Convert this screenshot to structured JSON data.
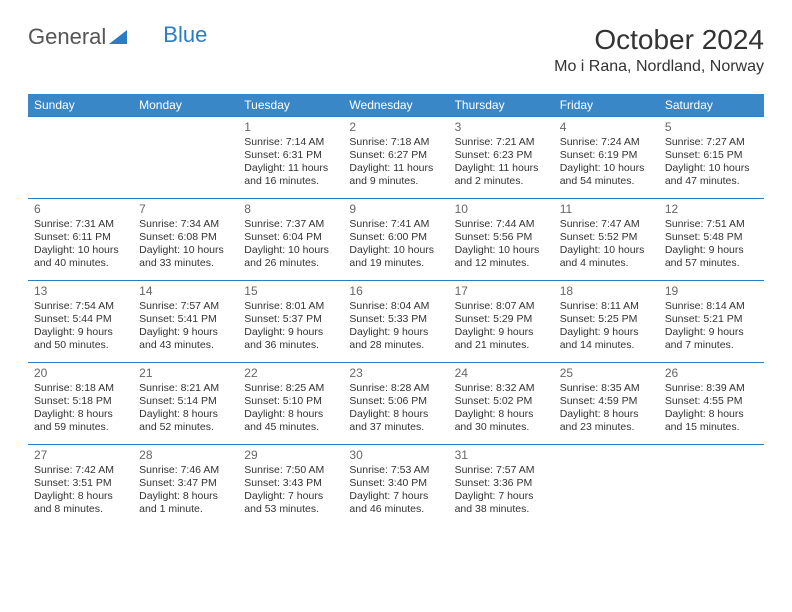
{
  "logo": {
    "text1": "General",
    "text2": "Blue"
  },
  "title": "October 2024",
  "location": "Mo i Rana, Nordland, Norway",
  "colors": {
    "header_bg": "#3a87c8",
    "header_text": "#ffffff",
    "cell_border": "#2a7cc4",
    "text": "#333333",
    "daynum": "#666666",
    "logo_gray": "#555555",
    "logo_blue": "#2a7cc4",
    "background": "#ffffff"
  },
  "fonts": {
    "title_size": 28,
    "location_size": 16,
    "dayheader_size": 12,
    "daynum_size": 12,
    "cell_size": 10.5
  },
  "day_headers": [
    "Sunday",
    "Monday",
    "Tuesday",
    "Wednesday",
    "Thursday",
    "Friday",
    "Saturday"
  ],
  "weeks": [
    [
      null,
      null,
      {
        "n": "1",
        "sr": "Sunrise: 7:14 AM",
        "ss": "Sunset: 6:31 PM",
        "d1": "Daylight: 11 hours",
        "d2": "and 16 minutes."
      },
      {
        "n": "2",
        "sr": "Sunrise: 7:18 AM",
        "ss": "Sunset: 6:27 PM",
        "d1": "Daylight: 11 hours",
        "d2": "and 9 minutes."
      },
      {
        "n": "3",
        "sr": "Sunrise: 7:21 AM",
        "ss": "Sunset: 6:23 PM",
        "d1": "Daylight: 11 hours",
        "d2": "and 2 minutes."
      },
      {
        "n": "4",
        "sr": "Sunrise: 7:24 AM",
        "ss": "Sunset: 6:19 PM",
        "d1": "Daylight: 10 hours",
        "d2": "and 54 minutes."
      },
      {
        "n": "5",
        "sr": "Sunrise: 7:27 AM",
        "ss": "Sunset: 6:15 PM",
        "d1": "Daylight: 10 hours",
        "d2": "and 47 minutes."
      }
    ],
    [
      {
        "n": "6",
        "sr": "Sunrise: 7:31 AM",
        "ss": "Sunset: 6:11 PM",
        "d1": "Daylight: 10 hours",
        "d2": "and 40 minutes."
      },
      {
        "n": "7",
        "sr": "Sunrise: 7:34 AM",
        "ss": "Sunset: 6:08 PM",
        "d1": "Daylight: 10 hours",
        "d2": "and 33 minutes."
      },
      {
        "n": "8",
        "sr": "Sunrise: 7:37 AM",
        "ss": "Sunset: 6:04 PM",
        "d1": "Daylight: 10 hours",
        "d2": "and 26 minutes."
      },
      {
        "n": "9",
        "sr": "Sunrise: 7:41 AM",
        "ss": "Sunset: 6:00 PM",
        "d1": "Daylight: 10 hours",
        "d2": "and 19 minutes."
      },
      {
        "n": "10",
        "sr": "Sunrise: 7:44 AM",
        "ss": "Sunset: 5:56 PM",
        "d1": "Daylight: 10 hours",
        "d2": "and 12 minutes."
      },
      {
        "n": "11",
        "sr": "Sunrise: 7:47 AM",
        "ss": "Sunset: 5:52 PM",
        "d1": "Daylight: 10 hours",
        "d2": "and 4 minutes."
      },
      {
        "n": "12",
        "sr": "Sunrise: 7:51 AM",
        "ss": "Sunset: 5:48 PM",
        "d1": "Daylight: 9 hours",
        "d2": "and 57 minutes."
      }
    ],
    [
      {
        "n": "13",
        "sr": "Sunrise: 7:54 AM",
        "ss": "Sunset: 5:44 PM",
        "d1": "Daylight: 9 hours",
        "d2": "and 50 minutes."
      },
      {
        "n": "14",
        "sr": "Sunrise: 7:57 AM",
        "ss": "Sunset: 5:41 PM",
        "d1": "Daylight: 9 hours",
        "d2": "and 43 minutes."
      },
      {
        "n": "15",
        "sr": "Sunrise: 8:01 AM",
        "ss": "Sunset: 5:37 PM",
        "d1": "Daylight: 9 hours",
        "d2": "and 36 minutes."
      },
      {
        "n": "16",
        "sr": "Sunrise: 8:04 AM",
        "ss": "Sunset: 5:33 PM",
        "d1": "Daylight: 9 hours",
        "d2": "and 28 minutes."
      },
      {
        "n": "17",
        "sr": "Sunrise: 8:07 AM",
        "ss": "Sunset: 5:29 PM",
        "d1": "Daylight: 9 hours",
        "d2": "and 21 minutes."
      },
      {
        "n": "18",
        "sr": "Sunrise: 8:11 AM",
        "ss": "Sunset: 5:25 PM",
        "d1": "Daylight: 9 hours",
        "d2": "and 14 minutes."
      },
      {
        "n": "19",
        "sr": "Sunrise: 8:14 AM",
        "ss": "Sunset: 5:21 PM",
        "d1": "Daylight: 9 hours",
        "d2": "and 7 minutes."
      }
    ],
    [
      {
        "n": "20",
        "sr": "Sunrise: 8:18 AM",
        "ss": "Sunset: 5:18 PM",
        "d1": "Daylight: 8 hours",
        "d2": "and 59 minutes."
      },
      {
        "n": "21",
        "sr": "Sunrise: 8:21 AM",
        "ss": "Sunset: 5:14 PM",
        "d1": "Daylight: 8 hours",
        "d2": "and 52 minutes."
      },
      {
        "n": "22",
        "sr": "Sunrise: 8:25 AM",
        "ss": "Sunset: 5:10 PM",
        "d1": "Daylight: 8 hours",
        "d2": "and 45 minutes."
      },
      {
        "n": "23",
        "sr": "Sunrise: 8:28 AM",
        "ss": "Sunset: 5:06 PM",
        "d1": "Daylight: 8 hours",
        "d2": "and 37 minutes."
      },
      {
        "n": "24",
        "sr": "Sunrise: 8:32 AM",
        "ss": "Sunset: 5:02 PM",
        "d1": "Daylight: 8 hours",
        "d2": "and 30 minutes."
      },
      {
        "n": "25",
        "sr": "Sunrise: 8:35 AM",
        "ss": "Sunset: 4:59 PM",
        "d1": "Daylight: 8 hours",
        "d2": "and 23 minutes."
      },
      {
        "n": "26",
        "sr": "Sunrise: 8:39 AM",
        "ss": "Sunset: 4:55 PM",
        "d1": "Daylight: 8 hours",
        "d2": "and 15 minutes."
      }
    ],
    [
      {
        "n": "27",
        "sr": "Sunrise: 7:42 AM",
        "ss": "Sunset: 3:51 PM",
        "d1": "Daylight: 8 hours",
        "d2": "and 8 minutes."
      },
      {
        "n": "28",
        "sr": "Sunrise: 7:46 AM",
        "ss": "Sunset: 3:47 PM",
        "d1": "Daylight: 8 hours",
        "d2": "and 1 minute."
      },
      {
        "n": "29",
        "sr": "Sunrise: 7:50 AM",
        "ss": "Sunset: 3:43 PM",
        "d1": "Daylight: 7 hours",
        "d2": "and 53 minutes."
      },
      {
        "n": "30",
        "sr": "Sunrise: 7:53 AM",
        "ss": "Sunset: 3:40 PM",
        "d1": "Daylight: 7 hours",
        "d2": "and 46 minutes."
      },
      {
        "n": "31",
        "sr": "Sunrise: 7:57 AM",
        "ss": "Sunset: 3:36 PM",
        "d1": "Daylight: 7 hours",
        "d2": "and 38 minutes."
      },
      null,
      null
    ]
  ]
}
